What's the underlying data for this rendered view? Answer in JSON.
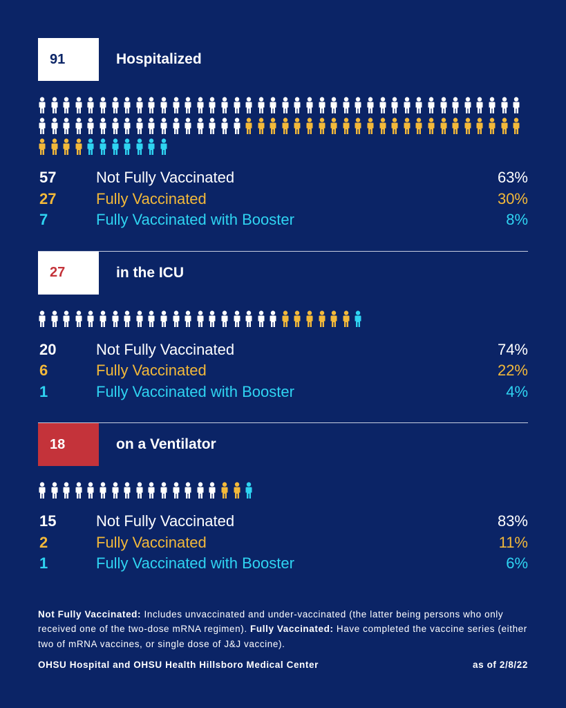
{
  "sections": [
    {
      "total": 91,
      "title": "Hospitalized",
      "rows": [
        {
          "count": 57,
          "label": "Not Fully Vaccinated",
          "percent": "63%",
          "color": "#ffffff"
        },
        {
          "count": 27,
          "label": "Fully Vaccinated",
          "percent": "30%",
          "color": "#f3b93a"
        },
        {
          "count": 7,
          "label": "Fully Vaccinated with Booster",
          "percent": "8%",
          "color": "#2fd4f2"
        }
      ]
    },
    {
      "total": 27,
      "title": "in the ICU",
      "rows": [
        {
          "count": 20,
          "label": "Not Fully Vaccinated",
          "percent": "74%",
          "color": "#ffffff"
        },
        {
          "count": 6,
          "label": "Fully Vaccinated",
          "percent": "22%",
          "color": "#f3b93a"
        },
        {
          "count": 1,
          "label": "Fully Vaccinated with Booster",
          "percent": "4%",
          "color": "#2fd4f2"
        }
      ]
    },
    {
      "total": 18,
      "title": "on a Ventilator",
      "rows": [
        {
          "count": 15,
          "label": "Not Fully Vaccinated",
          "percent": "83%",
          "color": "#ffffff"
        },
        {
          "count": 2,
          "label": "Fully Vaccinated",
          "percent": "11%",
          "color": "#f3b93a"
        },
        {
          "count": 1,
          "label": "Fully Vaccinated with Booster",
          "percent": "6%",
          "color": "#2fd4f2"
        }
      ]
    }
  ],
  "notes": [
    {
      "term": "Not Fully Vaccinated:",
      "text": "Includes unvaccinated and under-vaccinated (the latter being persons who only received one of the two-dose mRNA regimen)."
    },
    {
      "term": "Fully Vaccinated:",
      "text": "Have completed the vaccine series (either two of mRNA vaccines, or single dose of J&J vaccine)."
    }
  ],
  "source": "OHSU Hospital and OHSU Health Hillsboro Medical Center",
  "date": "as of 2/8/22"
}
